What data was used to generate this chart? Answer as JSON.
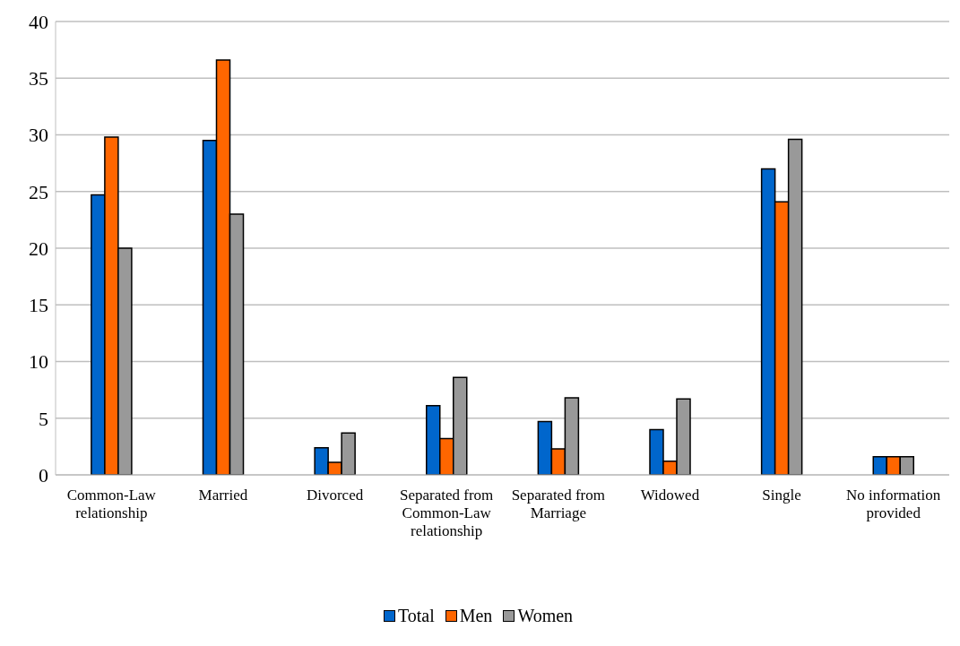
{
  "chart_data": {
    "type": "bar",
    "categories": [
      "Common-Law relationship",
      "Married",
      "Divorced",
      "Separated from Common-Law relationship",
      "Separated from Marriage",
      "Widowed",
      "Single",
      "No information provided"
    ],
    "series": [
      {
        "name": "Total",
        "color": "#0066cc",
        "values": [
          24.7,
          29.5,
          2.4,
          6.1,
          4.7,
          4.0,
          27.0,
          1.6
        ]
      },
      {
        "name": "Men",
        "color": "#ff6600",
        "values": [
          29.8,
          36.6,
          1.1,
          3.2,
          2.3,
          1.2,
          24.1,
          1.6
        ]
      },
      {
        "name": "Women",
        "color": "#999999",
        "values": [
          20.0,
          23.0,
          3.7,
          8.6,
          6.8,
          6.7,
          29.6,
          1.6
        ]
      }
    ],
    "ylim": [
      0,
      40
    ],
    "yticks": [
      0,
      5,
      10,
      15,
      20,
      25,
      30,
      35,
      40
    ],
    "grid": "y",
    "legend": "bottom"
  }
}
